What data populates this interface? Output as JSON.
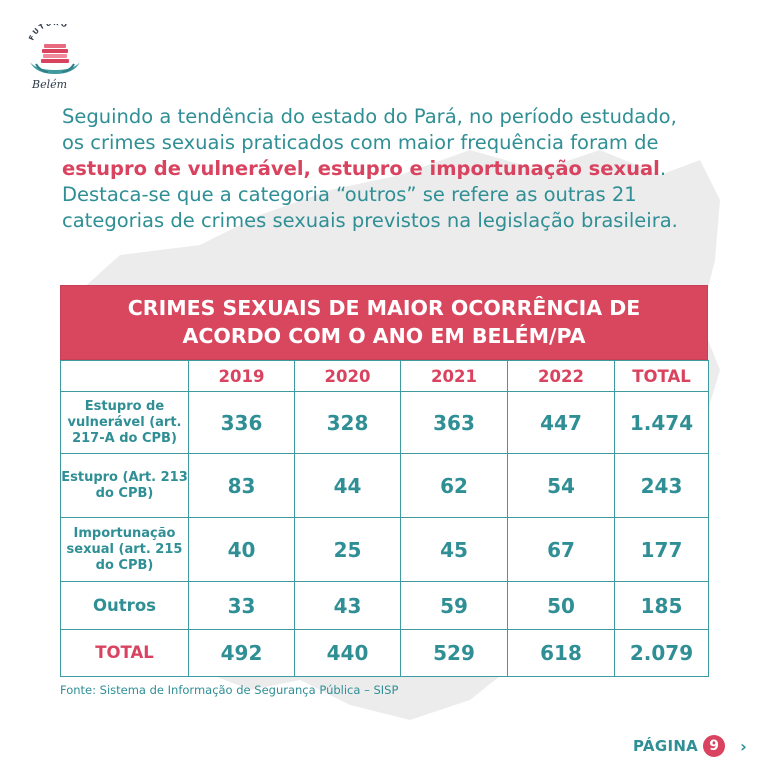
{
  "logo": {
    "arc_text": "FUTURO",
    "script_text": "Belém"
  },
  "intro": {
    "part1": "Seguindo a tendência do estado do Pará, no período estudado, os crimes sexuais praticados com maior frequência foram de ",
    "highlight": "estupro de vulnerável, estupro e importunação sexual",
    "part2": ". Destaca-se que a categoria “outros” se refere as outras 21 categorias de crimes sexuais previstos na legislação brasileira."
  },
  "table": {
    "title_line1": "CRIMES SEXUAIS DE MAIOR OCORRÊNCIA DE",
    "title_line2": "ACORDO COM O ANO EM BELÉM/PA",
    "headers": [
      "2019",
      "2020",
      "2021",
      "2022",
      "TOTAL"
    ],
    "rows": [
      {
        "label": "Estupro de vulnerável (art. 217-A do CPB)",
        "values": [
          "336",
          "328",
          "363",
          "447",
          "1.474"
        ]
      },
      {
        "label": "Estupro (Art. 213 do CPB)",
        "values": [
          "83",
          "44",
          "62",
          "54",
          "243"
        ]
      },
      {
        "label": "Importunação sexual (art. 215 do CPB)",
        "values": [
          "40",
          "25",
          "45",
          "67",
          "177"
        ]
      },
      {
        "label": "Outros",
        "values": [
          "33",
          "43",
          "59",
          "50",
          "185"
        ]
      },
      {
        "label": "TOTAL",
        "values": [
          "492",
          "440",
          "529",
          "618",
          "2.079"
        ]
      }
    ]
  },
  "source": "Fonte: Sistema de Informação de Segurança Pública – SISP",
  "pager": {
    "label": "PÁGINA",
    "number": "9",
    "arrow": "›"
  },
  "colors": {
    "teal": "#2f8f95",
    "accent_red": "#d9435f",
    "title_bg": "#d9475f",
    "map_bg": "#ececec"
  }
}
